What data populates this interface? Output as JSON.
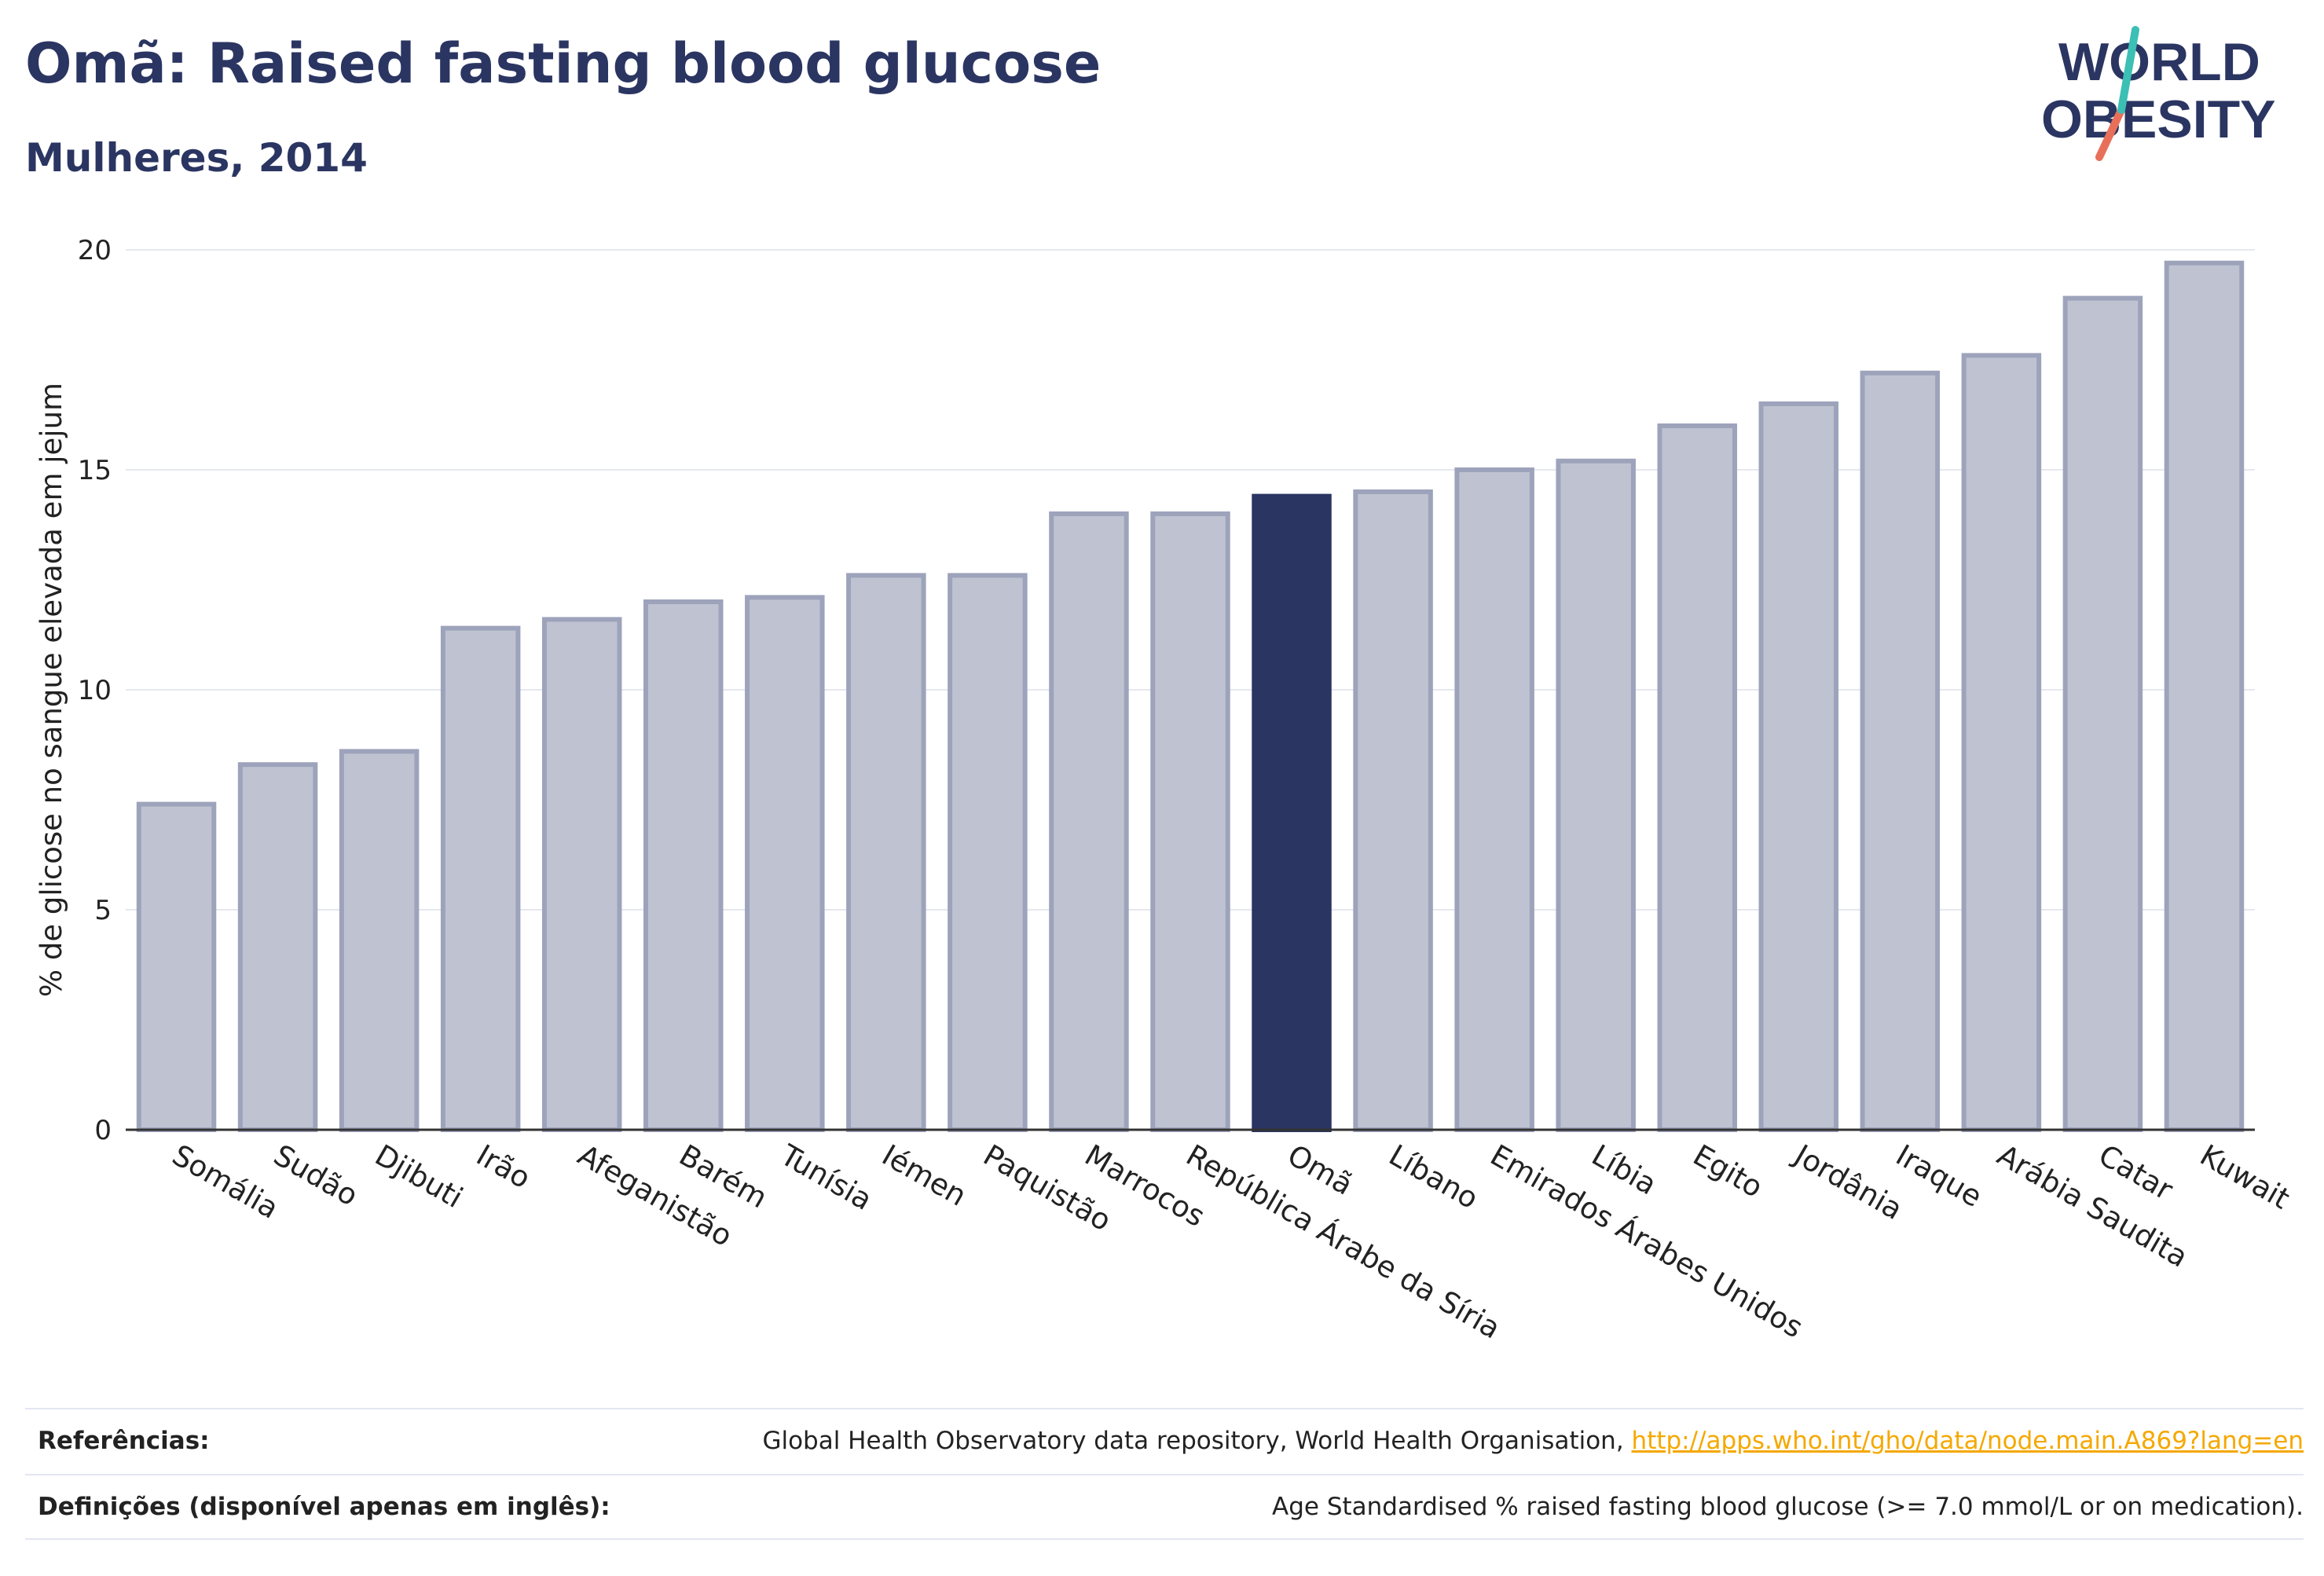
{
  "header": {
    "title": "Omã: Raised fasting blood glucose",
    "subtitle": "Mulheres, 2014"
  },
  "logo": {
    "line1": "WORLD",
    "line2": "OBESITY",
    "colors": {
      "text": "#2b3562",
      "slash_teal": "#3cbfb4",
      "slash_coral": "#e8705a"
    }
  },
  "chart_data": {
    "type": "bar",
    "ylabel": "% de glicose no sangue elevada em jejum",
    "ylim": [
      0,
      20
    ],
    "yticks": [
      0,
      5,
      10,
      15,
      20
    ],
    "grid": true,
    "highlight": "Omã",
    "categories": [
      "Somália",
      "Sudão",
      "Djibuti",
      "Irão",
      "Afeganistão",
      "Barém",
      "Tunísia",
      "Iémen",
      "Paquistão",
      "Marrocos",
      "República Árabe da Síria",
      "Omã",
      "Líbano",
      "Emirados Árabes Unidos",
      "Líbia",
      "Egito",
      "Jordânia",
      "Iraque",
      "Arábia Saudita",
      "Catar",
      "Kuwait"
    ],
    "values": [
      7.4,
      8.3,
      8.6,
      11.4,
      11.6,
      12.0,
      12.1,
      12.6,
      12.6,
      14.0,
      14.0,
      14.4,
      14.5,
      15.0,
      15.2,
      16.0,
      16.5,
      17.2,
      17.6,
      18.9,
      19.7
    ],
    "colors": {
      "bar": "#bfc3d1",
      "bar_border": "#9da3bb",
      "highlight": "#2b3562",
      "grid": "#e6e8ef",
      "axis": "#333333"
    }
  },
  "footer": {
    "references_label": "Referências:",
    "references_text": "Global Health Observatory data repository, World Health Organisation, ",
    "references_link": "http://apps.who.int/gho/data/node.main.A869?lang=en",
    "definitions_label": "Definições (disponível apenas em inglês):",
    "definitions_text": "Age Standardised % raised fasting blood glucose (>= 7.0 mmol/L or on medication)."
  }
}
